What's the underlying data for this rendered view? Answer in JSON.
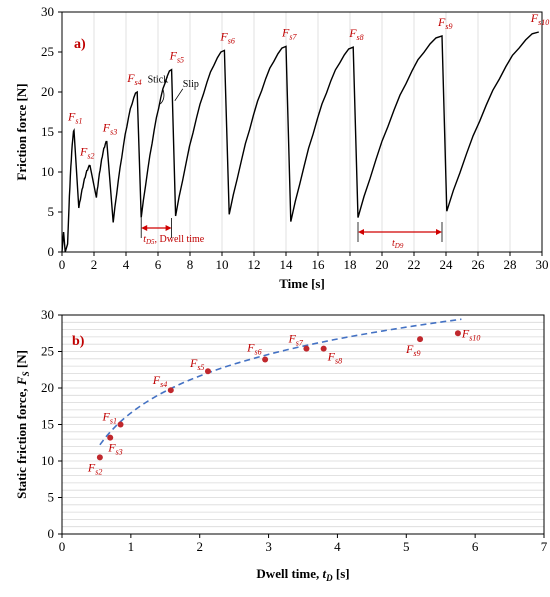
{
  "chart_data": [
    {
      "type": "line",
      "panel_label": "a)",
      "xlabel": "Time [s]",
      "ylabel": "Friction force [N]",
      "xlim": [
        0,
        30
      ],
      "ylim": [
        0,
        30
      ],
      "xticks": [
        "0",
        "2",
        "4",
        "6",
        "8",
        "10",
        "12",
        "14",
        "16",
        "18",
        "20",
        "22",
        "24",
        "26",
        "28",
        "30"
      ],
      "yticks": [
        "0",
        "5",
        "10",
        "15",
        "20",
        "25",
        "30"
      ],
      "grid": "vertical",
      "line_color": "#000000",
      "peaks": [
        {
          "label": "F",
          "sub": "s1",
          "x": 0.75,
          "y": 15.2
        },
        {
          "label": "F",
          "sub": "s2",
          "x": 1.75,
          "y": 10.8
        },
        {
          "label": "F",
          "sub": "s3",
          "x": 2.8,
          "y": 13.8
        },
        {
          "label": "F",
          "sub": "s4",
          "x": 4.7,
          "y": 20.0
        },
        {
          "label": "F",
          "sub": "s5",
          "x": 6.85,
          "y": 22.8
        },
        {
          "label": "F",
          "sub": "s6",
          "x": 10.15,
          "y": 25.2
        },
        {
          "label": "F",
          "sub": "s7",
          "x": 14.0,
          "y": 25.7
        },
        {
          "label": "F",
          "sub": "s8",
          "x": 18.2,
          "y": 25.6
        },
        {
          "label": "F",
          "sub": "s9",
          "x": 23.75,
          "y": 27.0
        },
        {
          "label": "F",
          "sub": "s10",
          "x": 29.8,
          "y": 27.5
        }
      ],
      "troughs": [
        {
          "x": 1.05,
          "y": 5.5
        },
        {
          "x": 2.15,
          "y": 6.8
        },
        {
          "x": 3.2,
          "y": 3.7
        },
        {
          "x": 4.95,
          "y": 4.3
        },
        {
          "x": 7.1,
          "y": 4.5
        },
        {
          "x": 10.45,
          "y": 4.7
        },
        {
          "x": 14.3,
          "y": 3.8
        },
        {
          "x": 18.5,
          "y": 4.3
        },
        {
          "x": 24.05,
          "y": 5.1
        }
      ],
      "annotations": {
        "stick": "Stick",
        "slip": "Slip",
        "dwell": {
          "prefix": "t",
          "sub": "D5",
          "suffix": ", Dwell time",
          "x_start": 4.95,
          "x_end": 6.85,
          "y": 3.0
        },
        "dwell2": {
          "prefix": "t",
          "sub": "D9",
          "x_start": 18.5,
          "x_end": 23.75,
          "y": 2.5
        }
      }
    },
    {
      "type": "scatter",
      "panel_label": "b)",
      "xlabel_main": "Dwell time, ",
      "xlabel_var": "t",
      "xlabel_sub": "D",
      "xlabel_unit": " [s]",
      "ylabel_main": "Static friction force, ",
      "ylabel_var": "F",
      "ylabel_sub": "S",
      "ylabel_unit": " [N]",
      "xlim": [
        0,
        7
      ],
      "ylim": [
        0,
        30
      ],
      "xticks": [
        "0",
        "1",
        "2",
        "3",
        "4",
        "5",
        "6",
        "7"
      ],
      "yticks": [
        "0",
        "5",
        "10",
        "15",
        "20",
        "25",
        "30"
      ],
      "grid": "horizontal",
      "point_color": "#c0282d",
      "fit_color": "#4472c4",
      "points": [
        {
          "label": "F",
          "sub": "s1",
          "x": 0.85,
          "y": 15.0
        },
        {
          "label": "F",
          "sub": "s2",
          "x": 0.55,
          "y": 10.5
        },
        {
          "label": "F",
          "sub": "s3",
          "x": 0.7,
          "y": 13.2
        },
        {
          "label": "F",
          "sub": "s4",
          "x": 1.58,
          "y": 19.7
        },
        {
          "label": "F",
          "sub": "s5",
          "x": 2.12,
          "y": 22.3
        },
        {
          "label": "F",
          "sub": "s6",
          "x": 2.95,
          "y": 23.9
        },
        {
          "label": "F",
          "sub": "s7",
          "x": 3.55,
          "y": 25.4
        },
        {
          "label": "F",
          "sub": "s8",
          "x": 3.8,
          "y": 25.4
        },
        {
          "label": "F",
          "sub": "s9",
          "x": 5.2,
          "y": 26.7
        },
        {
          "label": "F",
          "sub": "s10",
          "x": 5.75,
          "y": 27.5
        }
      ]
    }
  ]
}
